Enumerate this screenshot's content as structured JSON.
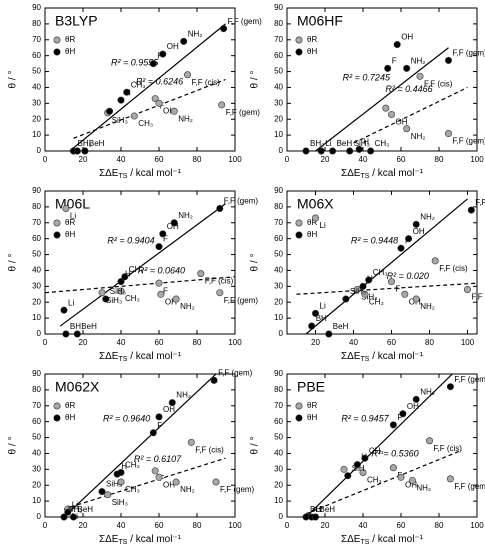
{
  "chart_data": [
    {
      "type": "scatter",
      "title": "B3LYP",
      "y_label": "θ / °",
      "x_label": "ΣΔE",
      "x_label_sub": "TS",
      "x_label_unit": " / kcal mol⁻¹",
      "xlim": [
        0,
        100
      ],
      "xticks": [
        0,
        20,
        40,
        60,
        80,
        100
      ],
      "ylim": [
        0,
        90
      ],
      "yticks": [
        0,
        10,
        20,
        30,
        40,
        50,
        60,
        70,
        80,
        90
      ],
      "legend": "upper left",
      "series": [
        {
          "name": "θR",
          "color": "#a8a8a8",
          "x": [
            15,
            17,
            21,
            33,
            47,
            58,
            60,
            68,
            75,
            93
          ],
          "values": [
            0,
            0,
            0,
            24,
            22,
            33,
            30,
            25,
            48,
            29
          ],
          "labels": [
            null,
            null,
            null,
            "SiH₃",
            "CH₃",
            "F",
            "OH",
            "NH₂",
            "F,F (cis)",
            "F,F (gem)"
          ],
          "trendline": {
            "x": [
              15,
              95
            ],
            "y": [
              8,
              45
            ],
            "style": "dashed",
            "label": "R² = 0.6246"
          }
        },
        {
          "name": "θH",
          "color": "#000000",
          "x": [
            15,
            17,
            21,
            34,
            40,
            43,
            57,
            62,
            73,
            94
          ],
          "values": [
            0,
            0,
            0,
            25,
            32,
            37,
            55,
            61,
            69,
            77
          ],
          "labels": [
            "BH₂",
            null,
            "BeH",
            null,
            "H",
            "CH₃",
            "F",
            "OH",
            "NH₂",
            "F,F (gem)"
          ],
          "trendline": {
            "x": [
              13,
              95
            ],
            "y": [
              0,
              80
            ],
            "style": "solid",
            "label": "R² = 0.9555"
          }
        }
      ]
    },
    {
      "type": "scatter",
      "title": "M06HF",
      "y_label": "θ / °",
      "x_label": "ΣΔE",
      "x_label_sub": "TS",
      "x_label_unit": " / kcal mol⁻¹",
      "xlim": [
        0,
        100
      ],
      "xticks": [
        0,
        20,
        40,
        60,
        80,
        100
      ],
      "ylim": [
        0,
        90
      ],
      "yticks": [
        0,
        10,
        20,
        30,
        40,
        50,
        60,
        70,
        80,
        90
      ],
      "legend": "upper left",
      "series": [
        {
          "name": "θR",
          "color": "#a8a8a8",
          "x": [
            52,
            55,
            63,
            70,
            85
          ],
          "values": [
            27,
            23,
            14,
            47,
            11
          ],
          "labels": [
            "F",
            "OH",
            "NH₂",
            "F,F (cis)",
            "F,F (gem)"
          ],
          "trendline": {
            "x": [
              35,
              95
            ],
            "y": [
              5,
              40
            ],
            "style": "dashed",
            "label": "R² = 0.4466"
          }
        },
        {
          "name": "θH",
          "color": "#000000",
          "x": [
            10,
            18,
            24,
            33,
            38,
            44,
            53,
            58,
            63,
            85
          ],
          "values": [
            0,
            0,
            0,
            0,
            1,
            0,
            52,
            67,
            52,
            57
          ],
          "labels": [
            "BH₂",
            "Li",
            "BeH",
            "SiH₃",
            "H",
            "CH₃",
            "F",
            "OH",
            "NH₂",
            "F,F (gem)"
          ],
          "trendline": {
            "x": [
              15,
              85
            ],
            "y": [
              0,
              65
            ],
            "style": "solid",
            "label": "R² = 0.7245"
          }
        }
      ]
    },
    {
      "type": "scatter",
      "title": "M06L",
      "y_label": "θ / °",
      "x_label": "ΣΔE",
      "x_label_sub": "TS",
      "x_label_unit": " / kcal mol⁻¹",
      "xlim": [
        0,
        100
      ],
      "xticks": [
        0,
        20,
        40,
        60,
        80,
        100
      ],
      "ylim": [
        0,
        90
      ],
      "yticks": [
        0,
        10,
        20,
        30,
        40,
        50,
        60,
        70,
        80,
        90
      ],
      "legend": "upper left",
      "series": [
        {
          "name": "θR",
          "color": "#a8a8a8",
          "x": [
            11,
            30,
            40,
            60,
            61,
            69,
            82,
            92
          ],
          "values": [
            79,
            26,
            27,
            32,
            25,
            22,
            38,
            26
          ],
          "labels": [
            "Li",
            "SiH₃",
            "CH₃",
            "F",
            "OH",
            "NH₂",
            "F,F (cis)",
            "F,F (gem)"
          ],
          "trendline": {
            "x": [
              0,
              100
            ],
            "y": [
              26,
              36
            ],
            "style": "dashed",
            "label": "R² = 0.0640"
          }
        },
        {
          "name": "θH",
          "color": "#000000",
          "x": [
            10,
            11,
            17,
            32,
            40,
            42,
            60,
            62,
            68,
            92
          ],
          "values": [
            15,
            0,
            0,
            22,
            33,
            36,
            55,
            63,
            70,
            79
          ],
          "labels": [
            "Li",
            "BH",
            "BeH",
            "SiH₃",
            "H",
            "CH₃",
            "F",
            "OH",
            "NH₂",
            "F,F (gem)"
          ],
          "trendline": {
            "x": [
              8,
              95
            ],
            "y": [
              5,
              82
            ],
            "style": "solid",
            "label": "R² = 0.9404"
          }
        }
      ]
    },
    {
      "type": "scatter",
      "title": "M06X",
      "y_label": "θ / °",
      "x_label": "ΣΔE",
      "x_label_sub": "TS",
      "x_label_unit": " / kcal mol⁻¹",
      "xlim": [
        5,
        105
      ],
      "xticks": [
        20,
        40,
        60,
        80,
        100
      ],
      "ylim": [
        0,
        90
      ],
      "yticks": [
        0,
        10,
        20,
        30,
        40,
        50,
        60,
        70,
        80,
        90
      ],
      "legend": "upper left",
      "series": [
        {
          "name": "θR",
          "color": "#a8a8a8",
          "x": [
            20,
            42,
            46,
            60,
            67,
            73,
            83,
            100
          ],
          "values": [
            73,
            28,
            25,
            33,
            25,
            22,
            46,
            28
          ],
          "labels": [
            "Li",
            "SiH₃",
            "CH₃",
            "F",
            "OH",
            "NH₂",
            "F,F (cis)",
            "F,F (gem)"
          ],
          "trendline": {
            "x": [
              10,
              105
            ],
            "y": [
              25,
              32
            ],
            "style": "dashed",
            "label": "R² = 0.020"
          }
        },
        {
          "name": "θH",
          "color": "#000000",
          "x": [
            18,
            20,
            27,
            36,
            45,
            48,
            65,
            69,
            73,
            102
          ],
          "values": [
            5,
            13,
            0,
            22,
            30,
            34,
            54,
            60,
            69,
            78
          ],
          "labels": [
            "BH",
            "Li",
            "BeH",
            "SiH₃",
            "H",
            "CH₃",
            "F",
            "OH",
            "NH₂",
            "F,F (gem)"
          ],
          "trendline": {
            "x": [
              15,
              100
            ],
            "y": [
              0,
              85
            ],
            "style": "solid",
            "label": "R² = 0.9448"
          }
        }
      ]
    },
    {
      "type": "scatter",
      "title": "M062X",
      "y_label": "θ / °",
      "x_label": "ΣΔE",
      "x_label_sub": "TS",
      "x_label_unit": " / kcal mol⁻¹",
      "xlim": [
        0,
        100
      ],
      "xticks": [
        0,
        20,
        40,
        60,
        80,
        100
      ],
      "ylim": [
        0,
        90
      ],
      "yticks": [
        0,
        10,
        20,
        30,
        40,
        50,
        60,
        70,
        80,
        90
      ],
      "legend": "upper left",
      "series": [
        {
          "name": "θR",
          "color": "#a8a8a8",
          "x": [
            12,
            33,
            40,
            58,
            60,
            69,
            77,
            90
          ],
          "values": [
            5,
            14,
            22,
            29,
            25,
            22,
            47,
            22
          ],
          "labels": [
            "Li",
            "SiH₃",
            "CH₃",
            "F",
            "OH",
            "NH₂",
            "F,F (cis)",
            "F,F (gem)"
          ],
          "trendline": {
            "x": [
              10,
              95
            ],
            "y": [
              5,
              37
            ],
            "style": "dashed",
            "label": "R² = 0.6107"
          }
        },
        {
          "name": "θH",
          "color": "#000000",
          "x": [
            10,
            12,
            15,
            30,
            38,
            40,
            57,
            60,
            67,
            89
          ],
          "values": [
            0,
            3,
            0,
            16,
            27,
            28,
            53,
            63,
            72,
            86
          ],
          "labels": [
            "BH₂",
            "Li",
            "BeH",
            "SiH₃",
            "H",
            "CH₃",
            "F",
            "OH",
            "NH₂",
            "F,F (gem)"
          ],
          "trendline": {
            "x": [
              10,
              90
            ],
            "y": [
              0,
              90
            ],
            "style": "solid",
            "label": "R² = 0.9640"
          }
        }
      ]
    },
    {
      "type": "scatter",
      "title": "PBE",
      "y_label": "θ / °",
      "x_label": "ΣΔE",
      "x_label_sub": "TS",
      "x_label_unit": " / kcal mol⁻¹",
      "xlim": [
        0,
        100
      ],
      "xticks": [
        0,
        20,
        40,
        60,
        80,
        100
      ],
      "ylim": [
        0,
        90
      ],
      "yticks": [
        0,
        10,
        20,
        30,
        40,
        50,
        60,
        70,
        80,
        90
      ],
      "legend": "upper left",
      "series": [
        {
          "name": "θR",
          "color": "#a8a8a8",
          "x": [
            30,
            40,
            56,
            60,
            66,
            75,
            86
          ],
          "values": [
            30,
            28,
            31,
            25,
            23,
            48,
            24
          ],
          "labels": [
            null,
            "CH₃",
            "F",
            "OH",
            "NH₂",
            "F,F (cis)",
            "F,F (gem)"
          ],
          "trendline": {
            "x": [
              10,
              92
            ],
            "y": [
              2,
              42
            ],
            "style": "dashed",
            "label": "R² = 0.5360"
          }
        },
        {
          "name": "θH",
          "color": "#000000",
          "x": [
            10,
            13,
            15,
            32,
            37,
            41,
            56,
            61,
            68,
            86
          ],
          "values": [
            0,
            0,
            0,
            26,
            33,
            37,
            58,
            65,
            74,
            82
          ],
          "labels": [
            "BH",
            "Li",
            "BeH",
            "SiH",
            "H",
            "CH₃",
            "F",
            "OH",
            "NH₂",
            "F,F (gem)"
          ],
          "trendline": {
            "x": [
              10,
              87
            ],
            "y": [
              0,
              90
            ],
            "style": "solid",
            "label": "R² = 0.9457"
          }
        }
      ]
    }
  ]
}
